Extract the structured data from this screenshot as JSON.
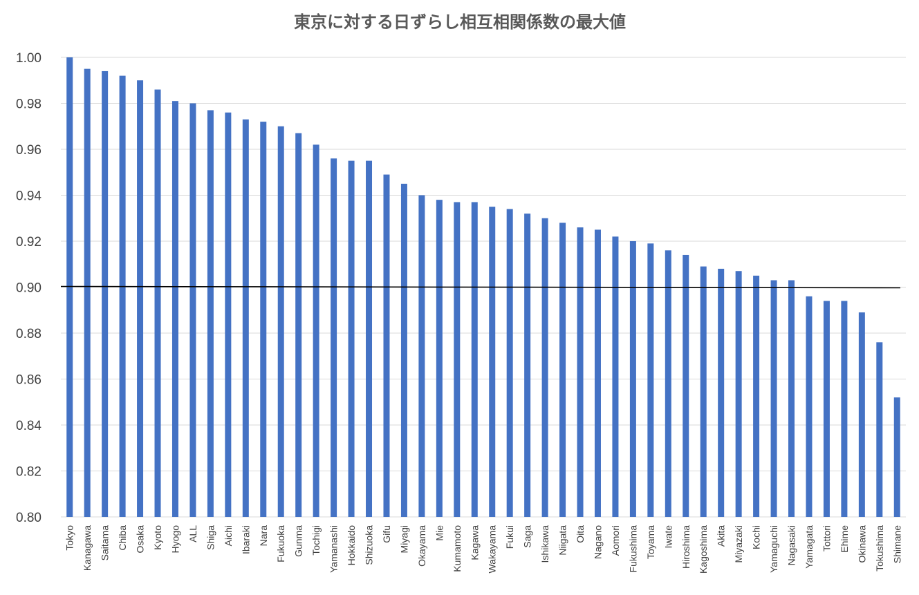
{
  "chart_data": {
    "type": "bar",
    "title": "東京に対する日ずらし相互相関係数の最大値",
    "xlabel": "",
    "ylabel": "",
    "ylim": [
      0.8,
      1.0
    ],
    "ytick_step": 0.02,
    "yticks": [
      "0.80",
      "0.82",
      "0.84",
      "0.86",
      "0.88",
      "0.90",
      "0.92",
      "0.94",
      "0.96",
      "0.98",
      "1.00"
    ],
    "grid": true,
    "legend": "none",
    "bar_color": "#4472c4",
    "reference_line": {
      "value": 0.9,
      "color": "#000000"
    },
    "categories": [
      "Tokyo",
      "Kanagawa",
      "Saitama",
      "Chiba",
      "Osaka",
      "Kyoto",
      "Hyogo",
      "ALL",
      "Shiga",
      "Aichi",
      "Ibaraki",
      "Nara",
      "Fukuoka",
      "Gunma",
      "Tochigi",
      "Yamanashi",
      "Hokkaido",
      "Shizuoka",
      "Gifu",
      "Miyagi",
      "Okayama",
      "Mie",
      "Kumamoto",
      "Kagawa",
      "Wakayama",
      "Fukui",
      "Saga",
      "Ishikawa",
      "Niigata",
      "Oita",
      "Nagano",
      "Aomori",
      "Fukushima",
      "Toyama",
      "Iwate",
      "Hiroshima",
      "Kagoshima",
      "Akita",
      "Miyazaki",
      "Kochi",
      "Yamaguchi",
      "Nagasaki",
      "Yamagata",
      "Tottori",
      "Ehime",
      "Okinawa",
      "Tokushima",
      "Shimane"
    ],
    "values": [
      1.0,
      0.995,
      0.994,
      0.992,
      0.99,
      0.986,
      0.981,
      0.98,
      0.977,
      0.976,
      0.973,
      0.972,
      0.97,
      0.967,
      0.962,
      0.956,
      0.955,
      0.955,
      0.949,
      0.945,
      0.94,
      0.938,
      0.937,
      0.937,
      0.935,
      0.934,
      0.932,
      0.93,
      0.928,
      0.926,
      0.925,
      0.922,
      0.92,
      0.919,
      0.916,
      0.914,
      0.909,
      0.908,
      0.907,
      0.905,
      0.903,
      0.903,
      0.896,
      0.894,
      0.894,
      0.889,
      0.876,
      0.852
    ]
  }
}
